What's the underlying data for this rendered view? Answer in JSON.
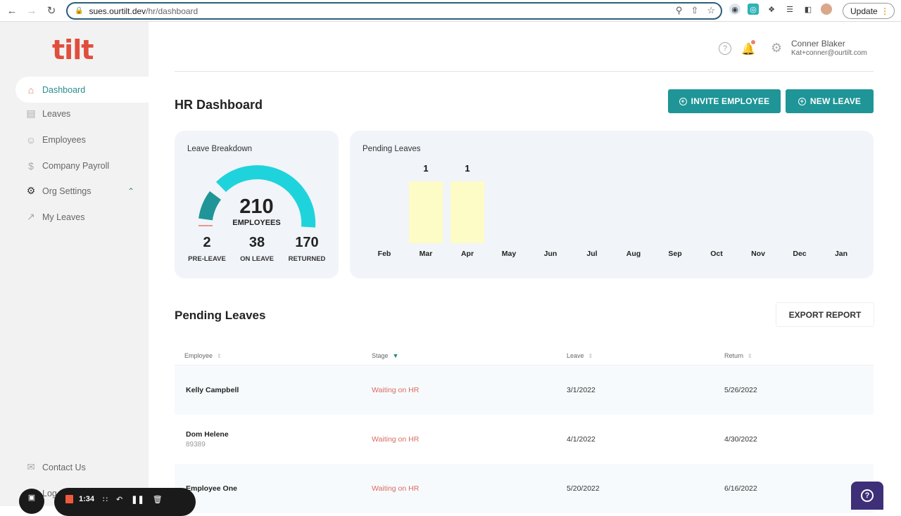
{
  "browser": {
    "url_host": "sues.ourtilt.dev",
    "url_path": "/hr/dashboard",
    "update_label": "Update",
    "icons": [
      "back-icon",
      "forward-icon",
      "reload-icon",
      "lock-icon",
      "zoom-icon",
      "share-icon",
      "star-icon",
      "extension-icon",
      "puzzle-icon",
      "media-icon",
      "sidepanel-icon",
      "profile-icon"
    ]
  },
  "sidebar": {
    "logo": "tilt",
    "items": [
      {
        "label": "Dashboard",
        "icon": "home-icon",
        "active": true
      },
      {
        "label": "Leaves",
        "icon": "calendar-icon"
      },
      {
        "label": "Employees",
        "icon": "people-icon"
      },
      {
        "label": "Company Payroll",
        "icon": "dollar-icon"
      },
      {
        "label": "Org Settings",
        "icon": "gear-icon",
        "expanded": true
      },
      {
        "label": "My Leaves",
        "icon": "external-link-icon"
      }
    ],
    "footer": [
      {
        "label": "Contact Us",
        "icon": "mail-icon"
      },
      {
        "label": "Log",
        "icon": "logout-icon"
      }
    ]
  },
  "header": {
    "user_name": "Conner Blaker",
    "user_email": "Kat+conner@ourtilt.com"
  },
  "page": {
    "title": "HR Dashboard",
    "invite_label": "INVITE EMPLOYEE",
    "new_leave_label": "NEW LEAVE"
  },
  "leave_breakdown": {
    "title": "Leave Breakdown",
    "total": "210",
    "total_label": "EMPLOYEES",
    "stats": [
      {
        "value": "2",
        "label": "PRE-LEAVE"
      },
      {
        "value": "38",
        "label": "ON LEAVE"
      },
      {
        "value": "170",
        "label": "RETURNED"
      }
    ],
    "colors": {
      "pre_leave": "#e07a6e",
      "on_leave": "#1f9597",
      "returned": "#1fd3dd"
    }
  },
  "pending_chart": {
    "title": "Pending Leaves"
  },
  "chart_data": {
    "type": "bar",
    "title": "Pending Leaves",
    "categories": [
      "Feb",
      "Mar",
      "Apr",
      "May",
      "Jun",
      "Jul",
      "Aug",
      "Sep",
      "Oct",
      "Nov",
      "Dec",
      "Jan"
    ],
    "values": [
      0,
      1,
      1,
      0,
      0,
      0,
      0,
      0,
      0,
      0,
      0,
      0
    ],
    "xlabel": "",
    "ylabel": "",
    "bar_color": "#fdfcc6",
    "data_labels": true,
    "grid": false
  },
  "pending_table": {
    "title": "Pending Leaves",
    "export_label": "EXPORT REPORT",
    "columns": [
      "Employee",
      "Stage",
      "Leave",
      "Return"
    ],
    "rows": [
      {
        "name": "Kelly Campbell",
        "sub": "",
        "stage": "Waiting on HR",
        "leave": "3/1/2022",
        "return": "5/26/2022"
      },
      {
        "name": "Dom Helene",
        "sub": "89389",
        "stage": "Waiting on HR",
        "leave": "4/1/2022",
        "return": "4/30/2022"
      },
      {
        "name": "Employee One",
        "sub": "",
        "stage": "Waiting on HR",
        "leave": "5/20/2022",
        "return": "6/16/2022"
      }
    ]
  },
  "recorder": {
    "time": "1:34"
  }
}
